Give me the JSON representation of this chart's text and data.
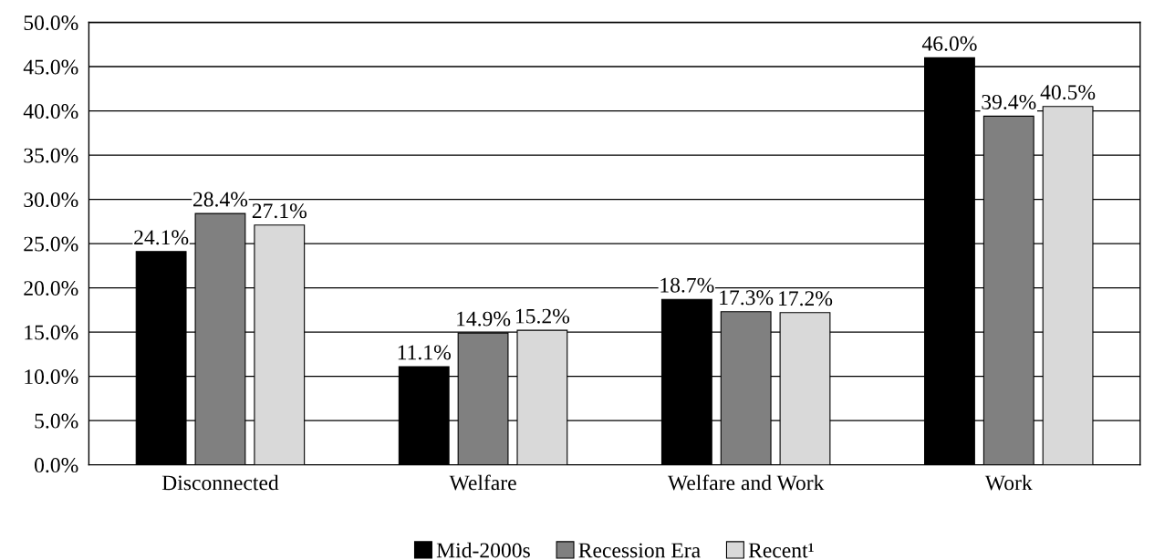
{
  "chart_data": {
    "type": "bar",
    "categories": [
      "Disconnected",
      "Welfare",
      "Welfare and Work",
      "Work"
    ],
    "series": [
      {
        "name": "Mid-2000s",
        "color": "#000000",
        "values": [
          24.1,
          11.1,
          18.7,
          46.0
        ],
        "value_labels": [
          "24.1%",
          "11.1%",
          "18.7%",
          "46.0%"
        ]
      },
      {
        "name": "Recession Era",
        "color": "#808080",
        "values": [
          28.4,
          14.9,
          17.3,
          39.4
        ],
        "value_labels": [
          "28.4%",
          "14.9%",
          "17.3%",
          "39.4%"
        ]
      },
      {
        "name": "Recent¹",
        "color": "#d9d9d9",
        "values": [
          27.1,
          15.2,
          17.2,
          40.5
        ],
        "value_labels": [
          "27.1%",
          "15.2%",
          "17.2%",
          "40.5%"
        ]
      }
    ],
    "ylim": [
      0,
      50
    ],
    "yticks": [
      {
        "value": 0,
        "label": "0.0%"
      },
      {
        "value": 5,
        "label": "5.0%"
      },
      {
        "value": 10,
        "label": "10.0%"
      },
      {
        "value": 15,
        "label": "15.0%"
      },
      {
        "value": 20,
        "label": "20.0%"
      },
      {
        "value": 25,
        "label": "25.0%"
      },
      {
        "value": 30,
        "label": "30.0%"
      },
      {
        "value": 35,
        "label": "35.0%"
      },
      {
        "value": 40,
        "label": "40.0%"
      },
      {
        "value": 45,
        "label": "45.0%"
      },
      {
        "value": 50,
        "label": "50.0%"
      }
    ],
    "grid": "y",
    "legend": "bottom"
  }
}
